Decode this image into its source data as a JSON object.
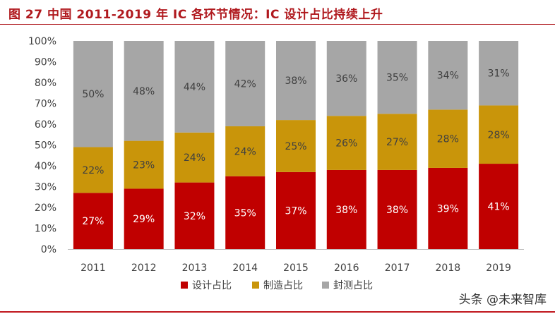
{
  "figure_title": "图 27 中国 2011-2019 年 IC 各环节情况：IC 设计占比持续上升",
  "watermark": "头条 @未来智库",
  "chart_data": {
    "type": "bar",
    "stacked": true,
    "categories": [
      "2011",
      "2012",
      "2013",
      "2014",
      "2015",
      "2016",
      "2017",
      "2018",
      "2019"
    ],
    "series": [
      {
        "name": "设计占比",
        "color": "#c00000",
        "label_color": "#ffffff",
        "values": [
          27,
          29,
          32,
          35,
          37,
          38,
          38,
          39,
          41
        ],
        "labels": [
          "27%",
          "29%",
          "32%",
          "35%",
          "37%",
          "38%",
          "38%",
          "39%",
          "41%"
        ]
      },
      {
        "name": "制造占比",
        "color": "#c9950a",
        "label_color": "#404040",
        "values": [
          22,
          23,
          24,
          24,
          25,
          26,
          27,
          28,
          28
        ],
        "labels": [
          "22%",
          "23%",
          "24%",
          "24%",
          "25%",
          "26%",
          "27%",
          "28%",
          "28%"
        ]
      },
      {
        "name": "封测占比",
        "color": "#a6a6a6",
        "label_color": "#404040",
        "values": [
          50,
          48,
          44,
          42,
          38,
          36,
          35,
          34,
          31
        ],
        "labels": [
          "50%",
          "48%",
          "44%",
          "42%",
          "38%",
          "36%",
          "35%",
          "34%",
          "31%"
        ]
      }
    ],
    "yticks": [
      "0%",
      "10%",
      "20%",
      "30%",
      "40%",
      "50%",
      "60%",
      "70%",
      "80%",
      "90%",
      "100%"
    ],
    "ylim": [
      0,
      100
    ],
    "legend_position": "bottom",
    "grid": false
  }
}
